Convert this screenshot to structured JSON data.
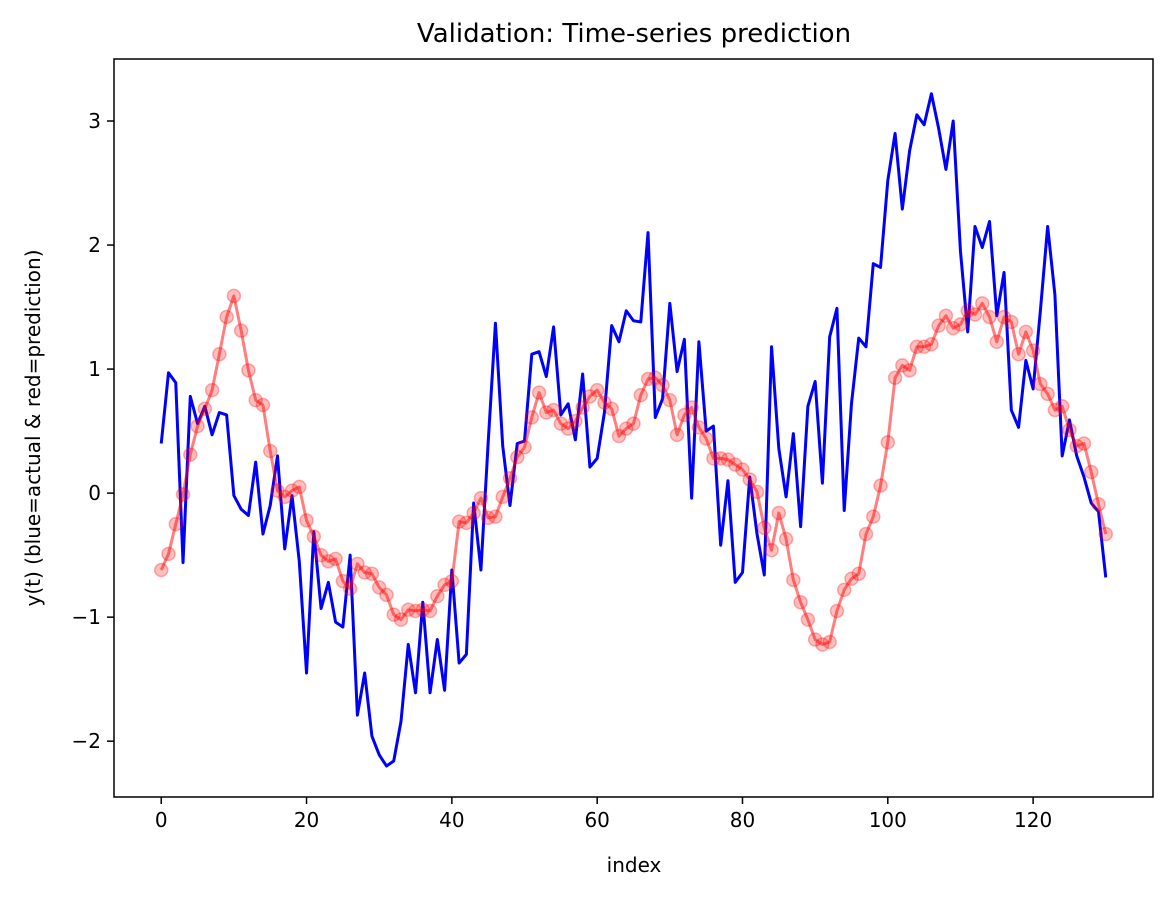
{
  "chart_data": {
    "type": "line",
    "title": "Validation: Time-series prediction",
    "xlabel": "index",
    "ylabel": "y(t) (blue=actual & red=prediction)",
    "xlim": [
      -6.5,
      136.5
    ],
    "ylim": [
      -2.45,
      3.5
    ],
    "xticks": [
      0,
      20,
      40,
      60,
      80,
      100,
      120
    ],
    "yticks": [
      -2,
      -1,
      0,
      1,
      2,
      3
    ],
    "grid": false,
    "legend": "none",
    "series": [
      {
        "color": "#0000ff",
        "style": "line",
        "values": [
          0.4,
          0.97,
          0.89,
          -0.56,
          0.78,
          0.56,
          0.7,
          0.47,
          0.65,
          0.63,
          -0.02,
          -0.13,
          -0.18,
          0.25,
          -0.33,
          -0.1,
          0.3,
          -0.45,
          -0.02,
          -0.55,
          -1.45,
          -0.31,
          -0.93,
          -0.72,
          -1.04,
          -1.08,
          -0.5,
          -1.79,
          -1.45,
          -1.96,
          -2.11,
          -2.2,
          -2.16,
          -1.84,
          -1.22,
          -1.61,
          -0.88,
          -1.61,
          -1.18,
          -1.59,
          -0.62,
          -1.37,
          -1.3,
          -0.08,
          -0.62,
          0.41,
          1.37,
          0.38,
          -0.1,
          0.4,
          0.42,
          1.12,
          1.14,
          0.94,
          1.34,
          0.63,
          0.72,
          0.43,
          0.96,
          0.21,
          0.28,
          0.65,
          1.35,
          1.22,
          1.47,
          1.39,
          1.38,
          2.1,
          0.61,
          0.76,
          1.53,
          0.98,
          1.24,
          -0.04,
          1.22,
          0.5,
          0.54,
          -0.42,
          0.1,
          -0.72,
          -0.64,
          0.13,
          -0.33,
          -0.66,
          1.18,
          0.36,
          -0.03,
          0.48,
          -0.27,
          0.7,
          0.9,
          0.08,
          1.26,
          1.49,
          -0.14,
          0.72,
          1.25,
          1.18,
          1.85,
          1.82,
          2.52,
          2.9,
          2.29,
          2.76,
          3.05,
          2.97,
          3.22,
          2.94,
          2.61,
          3.0,
          1.95,
          1.3,
          2.15,
          1.98,
          2.19,
          1.43,
          1.78,
          0.67,
          0.53,
          1.07,
          0.84,
          1.47,
          2.15,
          1.6,
          0.3,
          0.59,
          0.3,
          0.13,
          -0.08,
          -0.15,
          -0.68
        ]
      },
      {
        "color": "#ff0000",
        "style": "line+markers",
        "values": [
          -0.62,
          -0.49,
          -0.25,
          -0.01,
          0.31,
          0.54,
          0.68,
          0.83,
          1.12,
          1.42,
          1.59,
          1.31,
          0.99,
          0.75,
          0.71,
          0.34,
          0.02,
          -0.03,
          0.02,
          0.05,
          -0.22,
          -0.35,
          -0.5,
          -0.55,
          -0.53,
          -0.71,
          -0.77,
          -0.57,
          -0.64,
          -0.65,
          -0.76,
          -0.82,
          -0.98,
          -1.02,
          -0.94,
          -0.95,
          -0.94,
          -0.95,
          -0.83,
          -0.74,
          -0.71,
          -0.23,
          -0.24,
          -0.16,
          -0.04,
          -0.2,
          -0.19,
          -0.03,
          0.12,
          0.29,
          0.37,
          0.61,
          0.81,
          0.65,
          0.67,
          0.56,
          0.52,
          0.58,
          0.69,
          0.78,
          0.83,
          0.73,
          0.68,
          0.46,
          0.52,
          0.56,
          0.79,
          0.92,
          0.93,
          0.87,
          0.75,
          0.47,
          0.63,
          0.69,
          0.53,
          0.44,
          0.28,
          0.28,
          0.27,
          0.23,
          0.19,
          0.11,
          0.01,
          -0.28,
          -0.46,
          -0.16,
          -0.37,
          -0.7,
          -0.88,
          -1.02,
          -1.18,
          -1.22,
          -1.2,
          -0.95,
          -0.78,
          -0.69,
          -0.65,
          -0.33,
          -0.19,
          0.06,
          0.41,
          0.93,
          1.03,
          0.99,
          1.18,
          1.18,
          1.2,
          1.35,
          1.43,
          1.33,
          1.36,
          1.47,
          1.44,
          1.53,
          1.42,
          1.22,
          1.42,
          1.38,
          1.12,
          1.3,
          1.15,
          0.88,
          0.8,
          0.67,
          0.7,
          0.51,
          0.38,
          0.4,
          0.17,
          -0.09,
          -0.33
        ]
      }
    ]
  }
}
